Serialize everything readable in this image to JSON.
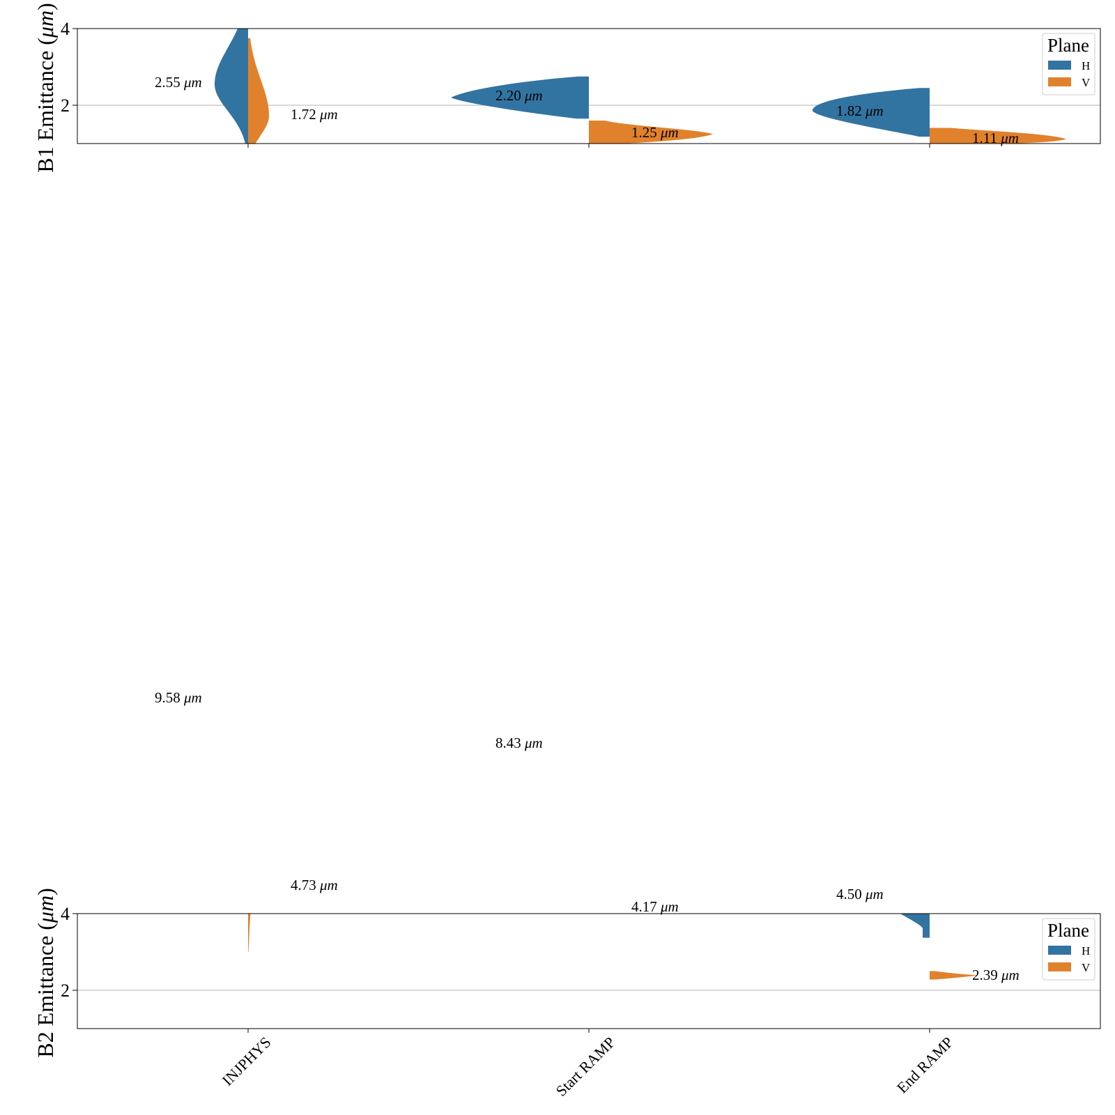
{
  "chart_data": [
    {
      "type": "violin",
      "ylabel": "B1 Emittance (",
      "ylabel_unit": "μm",
      "ylabel_close": ")",
      "ylim": [
        1,
        4
      ],
      "yticks": [
        2,
        4
      ],
      "grid_y": [
        2
      ],
      "categories": [
        "INJPHYS",
        "Start RAMP",
        "End RAMP"
      ],
      "show_xticklabels": false,
      "legend": {
        "title": "Plane",
        "placement": "top-right",
        "entries": [
          "H",
          "V"
        ]
      },
      "series": [
        {
          "name": "H",
          "color": "#3274a1",
          "medians": [
            2.55,
            2.2,
            1.82
          ],
          "labels": [
            "2.55",
            "2.20",
            "1.82"
          ],
          "violins": [
            {
              "min": 1.0,
              "max": 4.2,
              "peak": 2.55,
              "spread_up": 0.8,
              "spread_down": 0.55,
              "cut_top": 4.0,
              "cut_bottom": 1.0,
              "width": 1.0
            },
            {
              "min": 1.65,
              "max": 2.75,
              "peak": 2.22,
              "spread_up": 0.18,
              "spread_down": 0.18,
              "cut_top": 2.75,
              "cut_bottom": 1.65,
              "width": 1.0,
              "shape": "tail-left"
            },
            {
              "min": 1.15,
              "max": 2.45,
              "peak": 1.85,
              "spread_up": 0.15,
              "spread_down": 0.15,
              "cut_top": 2.45,
              "cut_bottom": 1.15,
              "width": 1.0,
              "shape": "tail-left"
            }
          ]
        },
        {
          "name": "V",
          "color": "#e1812c",
          "medians": [
            1.72,
            1.25,
            1.11
          ],
          "labels": [
            "1.72",
            "1.25",
            "1.11"
          ],
          "violins": [
            {
              "min": 1.0,
              "max": 3.75
            },
            {
              "min": 1.0,
              "max": 1.6
            },
            {
              "min": 1.0,
              "max": 1.4
            }
          ]
        }
      ]
    },
    {
      "type": "violin",
      "ylabel": "B2 Emittance (",
      "ylabel_unit": "μm",
      "ylabel_close": ")",
      "ylim": [
        1,
        4
      ],
      "yticks": [
        2,
        4
      ],
      "grid_y": [
        2
      ],
      "categories": [
        "INJPHYS",
        "Start RAMP",
        "End RAMP"
      ],
      "show_xticklabels": true,
      "legend": {
        "title": "Plane",
        "placement": "top-right",
        "entries": [
          "H",
          "V"
        ]
      },
      "series": [
        {
          "name": "H",
          "color": "#3274a1",
          "medians": [
            9.58,
            8.43,
            4.5
          ],
          "labels": [
            "9.58",
            "8.43",
            "4.50"
          ]
        },
        {
          "name": "V",
          "color": "#e1812c",
          "medians": [
            4.73,
            4.17,
            2.39
          ],
          "labels": [
            "4.73",
            "4.17",
            "2.39"
          ]
        }
      ]
    }
  ],
  "unit_text": "μm"
}
